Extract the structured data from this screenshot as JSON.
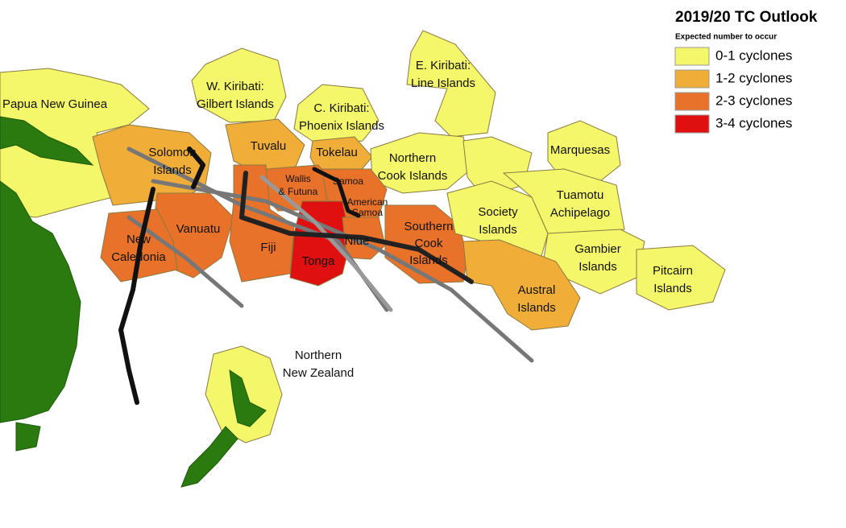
{
  "legend": {
    "title": "2019/20 TC Outlook",
    "subtitle": "Expected number to occur",
    "items": [
      {
        "label": "0-1 cyclones",
        "color": "#f5f76a"
      },
      {
        "label": "1-2 cyclones",
        "color": "#f0ad38"
      },
      {
        "label": "2-3 cyclones",
        "color": "#e8722a"
      },
      {
        "label": "3-4 cyclones",
        "color": "#e01010"
      }
    ]
  },
  "regions": [
    {
      "label": [
        "Papua New Guinea"
      ]
    },
    {
      "label": [
        "W. Kiribati:",
        "Gilbert Islands"
      ]
    },
    {
      "label": [
        "E. Kiribati:",
        "Line Islands"
      ]
    },
    {
      "label": [
        "C. Kiribati:",
        "Phoenix Islands"
      ]
    },
    {
      "label": [
        "Solomon",
        "Islands"
      ]
    },
    {
      "label": [
        "Tuvalu"
      ]
    },
    {
      "label": [
        "Tokelau"
      ]
    },
    {
      "label": [
        "Northern",
        "Cook Islands"
      ]
    },
    {
      "label": [
        "Marquesas"
      ]
    },
    {
      "label": [
        "Wallis",
        "& Futuna"
      ]
    },
    {
      "label": [
        "Samoa"
      ]
    },
    {
      "label": [
        "American",
        "Samoa"
      ]
    },
    {
      "label": [
        "Vanuatu"
      ]
    },
    {
      "label": [
        "New",
        "Caledonia"
      ]
    },
    {
      "label": [
        "Fiji"
      ]
    },
    {
      "label": [
        "Tonga"
      ]
    },
    {
      "label": [
        "Niue"
      ]
    },
    {
      "label": [
        "Southern",
        "Cook",
        "Islands"
      ]
    },
    {
      "label": [
        "Society",
        "Islands"
      ]
    },
    {
      "label": [
        "Tuamotu",
        "Achipelago"
      ]
    },
    {
      "label": [
        "Gambier",
        "Islands"
      ]
    },
    {
      "label": [
        "Pitcairn",
        "Islands"
      ]
    },
    {
      "label": [
        "Austral",
        "Islands"
      ]
    },
    {
      "label": [
        "Northern",
        "New Zealand"
      ]
    }
  ]
}
